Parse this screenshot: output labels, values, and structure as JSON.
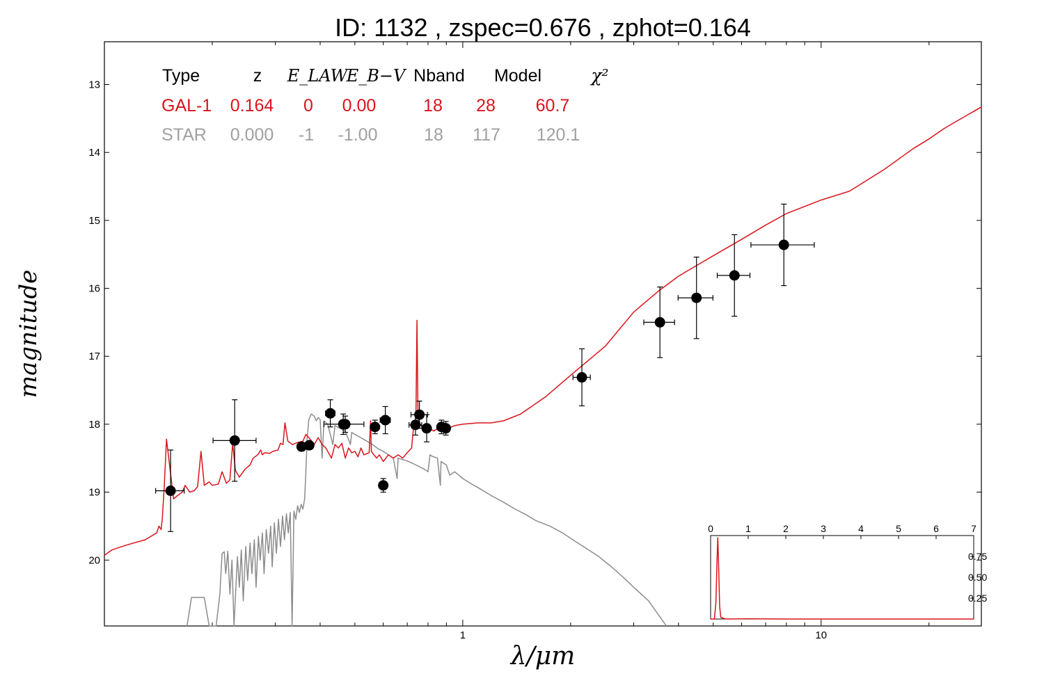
{
  "chart_data": {
    "type": "scatter",
    "title": "ID:  1132  , zspec=0.676 , zphot=0.164",
    "xlabel": "λ/μm",
    "ylabel": "magnitude",
    "xscale": "log",
    "xlim": [
      0.1,
      28
    ],
    "ylim": [
      20.97,
      12.37
    ],
    "x_ticks": [
      {
        "value": 1,
        "label": "1"
      },
      {
        "value": 10,
        "label": "10"
      }
    ],
    "y_ticks": [
      {
        "value": 13,
        "label": "13"
      },
      {
        "value": 14,
        "label": "14"
      },
      {
        "value": 15,
        "label": "15"
      },
      {
        "value": 16,
        "label": "16"
      },
      {
        "value": 17,
        "label": "17"
      },
      {
        "value": 18,
        "label": "18"
      },
      {
        "value": 19,
        "label": "19"
      },
      {
        "value": 20,
        "label": "20"
      }
    ],
    "colors": {
      "galaxy": "#d9141c",
      "star": "#8c8c8c",
      "points": "#000000",
      "axes": "#000000"
    },
    "fit_table": {
      "headers": [
        "Type",
        "z",
        "E_LAW",
        "E_B−V",
        "Nband",
        "Model",
        "χ²"
      ],
      "rows": [
        {
          "name": "gal",
          "values": [
            "GAL-1",
            "0.164",
            "0",
            "0.00",
            "18",
            "28",
            "60.7"
          ]
        },
        {
          "name": "star",
          "values": [
            "STAR",
            "0.000",
            "-1",
            "-1.00",
            "18",
            "117",
            "120.1"
          ]
        }
      ]
    },
    "photometry": [
      {
        "x": 0.153,
        "y": 18.98,
        "xerr": [
          0.014,
          0.014
        ],
        "yerr": 0.6
      },
      {
        "x": 0.231,
        "y": 18.24,
        "xerr": [
          0.03,
          0.034
        ],
        "yerr": 0.6
      },
      {
        "x": 0.355,
        "y": 18.33,
        "xerr": [
          0.007,
          0.007
        ],
        "yerr": 0.06
      },
      {
        "x": 0.373,
        "y": 18.31,
        "xerr": [
          0.01,
          0.01
        ],
        "yerr": 0.06
      },
      {
        "x": 0.427,
        "y": 17.84,
        "xerr": [
          0.013,
          0.013
        ],
        "yerr": 0.2
      },
      {
        "x": 0.464,
        "y": 18.0,
        "xerr": [
          0.012,
          0.012
        ],
        "yerr": 0.15
      },
      {
        "x": 0.47,
        "y": 18.0,
        "xerr": [
          0.06,
          0.06
        ],
        "yerr": 0.12
      },
      {
        "x": 0.569,
        "y": 18.04,
        "xerr": [
          0.013,
          0.013
        ],
        "yerr": 0.1
      },
      {
        "x": 0.6,
        "y": 18.9,
        "xerr": [
          0.015,
          0.015
        ],
        "yerr": 0.1
      },
      {
        "x": 0.608,
        "y": 17.94,
        "xerr": [
          0.02,
          0.02
        ],
        "yerr": 0.2
      },
      {
        "x": 0.738,
        "y": 18.01,
        "xerr": [
          0.03,
          0.03
        ],
        "yerr": 0.15
      },
      {
        "x": 0.757,
        "y": 17.86,
        "xerr": [
          0.04,
          0.04
        ],
        "yerr": 0.2
      },
      {
        "x": 0.793,
        "y": 18.06,
        "xerr": [
          0.015,
          0.015
        ],
        "yerr": 0.2
      },
      {
        "x": 0.872,
        "y": 18.04,
        "xerr": [
          0.02,
          0.02
        ],
        "yerr": 0.1
      },
      {
        "x": 0.897,
        "y": 18.06,
        "xerr": [
          0.02,
          0.02
        ],
        "yerr": 0.1
      },
      {
        "x": 2.15,
        "y": 17.31,
        "xerr": [
          0.12,
          0.12
        ],
        "yerr": 0.42
      },
      {
        "x": 3.55,
        "y": 16.5,
        "xerr": [
          0.35,
          0.35
        ],
        "yerr": 0.52
      },
      {
        "x": 4.49,
        "y": 16.14,
        "xerr": [
          0.5,
          0.5
        ],
        "yerr": 0.6
      },
      {
        "x": 5.73,
        "y": 15.81,
        "xerr": [
          0.6,
          0.6
        ],
        "yerr": 0.6
      },
      {
        "x": 7.87,
        "y": 15.36,
        "xerr": [
          1.5,
          1.7
        ],
        "yerr": 0.6
      }
    ],
    "galaxy_model": [
      [
        0.1,
        19.93
      ],
      [
        0.105,
        19.85
      ],
      [
        0.115,
        19.78
      ],
      [
        0.13,
        19.7
      ],
      [
        0.14,
        19.6
      ],
      [
        0.142,
        19.5
      ],
      [
        0.144,
        19.55
      ],
      [
        0.145,
        19.4
      ],
      [
        0.147,
        18.9
      ],
      [
        0.149,
        18.22
      ],
      [
        0.152,
        18.6
      ],
      [
        0.156,
        19.1
      ],
      [
        0.16,
        19.05
      ],
      [
        0.165,
        19.0
      ],
      [
        0.168,
        18.9
      ],
      [
        0.173,
        19.0
      ],
      [
        0.178,
        18.98
      ],
      [
        0.182,
        18.92
      ],
      [
        0.186,
        18.4
      ],
      [
        0.19,
        18.9
      ],
      [
        0.196,
        18.85
      ],
      [
        0.2,
        18.9
      ],
      [
        0.208,
        18.88
      ],
      [
        0.213,
        18.7
      ],
      [
        0.219,
        18.87
      ],
      [
        0.224,
        18.82
      ],
      [
        0.228,
        18.28
      ],
      [
        0.232,
        18.68
      ],
      [
        0.238,
        18.78
      ],
      [
        0.247,
        18.66
      ],
      [
        0.255,
        18.6
      ],
      [
        0.26,
        18.5
      ],
      [
        0.268,
        18.45
      ],
      [
        0.273,
        18.38
      ],
      [
        0.276,
        18.45
      ],
      [
        0.28,
        18.42
      ],
      [
        0.289,
        18.43
      ],
      [
        0.295,
        18.4
      ],
      [
        0.305,
        18.38
      ],
      [
        0.31,
        18.28
      ],
      [
        0.315,
        18.3
      ],
      [
        0.319,
        17.98
      ],
      [
        0.325,
        18.25
      ],
      [
        0.335,
        18.3
      ],
      [
        0.345,
        18.27
      ],
      [
        0.358,
        18.25
      ],
      [
        0.365,
        18.15
      ],
      [
        0.375,
        18.22
      ],
      [
        0.385,
        18.3
      ],
      [
        0.395,
        18.2
      ],
      [
        0.405,
        18.3
      ],
      [
        0.415,
        18.35
      ],
      [
        0.43,
        18.5
      ],
      [
        0.44,
        18.3
      ],
      [
        0.45,
        18.35
      ],
      [
        0.46,
        18.28
      ],
      [
        0.47,
        18.5
      ],
      [
        0.48,
        18.35
      ],
      [
        0.49,
        18.42
      ],
      [
        0.5,
        18.4
      ],
      [
        0.51,
        18.48
      ],
      [
        0.52,
        18.35
      ],
      [
        0.53,
        18.45
      ],
      [
        0.548,
        18.42
      ],
      [
        0.553,
        17.95
      ],
      [
        0.556,
        18.4
      ],
      [
        0.565,
        18.45
      ],
      [
        0.575,
        18.5
      ],
      [
        0.585,
        18.45
      ],
      [
        0.6,
        18.55
      ],
      [
        0.62,
        18.45
      ],
      [
        0.64,
        18.5
      ],
      [
        0.66,
        18.45
      ],
      [
        0.68,
        18.5
      ],
      [
        0.7,
        18.42
      ],
      [
        0.72,
        18.35
      ],
      [
        0.73,
        18.0
      ],
      [
        0.74,
        17.9
      ],
      [
        0.745,
        16.47
      ],
      [
        0.75,
        17.9
      ],
      [
        0.76,
        18.0
      ],
      [
        0.78,
        18.05
      ],
      [
        0.8,
        18.05
      ],
      [
        0.83,
        18.1
      ],
      [
        0.86,
        18.05
      ],
      [
        0.9,
        18.07
      ],
      [
        0.95,
        18.02
      ],
      [
        1.0,
        18.0
      ],
      [
        1.1,
        17.98
      ],
      [
        1.2,
        17.98
      ],
      [
        1.3,
        17.95
      ],
      [
        1.45,
        17.85
      ],
      [
        1.7,
        17.6
      ],
      [
        2.0,
        17.28
      ],
      [
        2.5,
        16.85
      ],
      [
        3.0,
        16.35
      ],
      [
        3.5,
        16.05
      ],
      [
        4.0,
        15.82
      ],
      [
        5.0,
        15.52
      ],
      [
        6.0,
        15.28
      ],
      [
        7.0,
        15.07
      ],
      [
        8.0,
        14.9
      ],
      [
        10.0,
        14.7
      ],
      [
        12.0,
        14.57
      ],
      [
        15.0,
        14.25
      ],
      [
        18.0,
        13.95
      ],
      [
        20.0,
        13.8
      ],
      [
        22.0,
        13.65
      ],
      [
        25.0,
        13.48
      ],
      [
        28.0,
        13.33
      ],
      [
        26.6,
        13.4
      ]
    ],
    "star_model": [
      [
        0.17,
        20.97
      ],
      [
        0.175,
        20.55
      ],
      [
        0.19,
        20.55
      ],
      [
        0.196,
        20.97
      ],
      [
        0.205,
        20.97
      ],
      [
        0.21,
        20.5
      ],
      [
        0.213,
        19.9
      ],
      [
        0.216,
        19.88
      ],
      [
        0.218,
        20.2
      ],
      [
        0.221,
        19.87
      ],
      [
        0.224,
        20.5
      ],
      [
        0.227,
        20.0
      ],
      [
        0.23,
        20.97
      ],
      [
        0.235,
        19.95
      ],
      [
        0.238,
        20.4
      ],
      [
        0.241,
        19.85
      ],
      [
        0.244,
        20.6
      ],
      [
        0.248,
        19.8
      ],
      [
        0.251,
        20.3
      ],
      [
        0.255,
        19.75
      ],
      [
        0.258,
        20.2
      ],
      [
        0.262,
        19.7
      ],
      [
        0.265,
        20.4
      ],
      [
        0.269,
        19.65
      ],
      [
        0.272,
        20.0
      ],
      [
        0.276,
        19.6
      ],
      [
        0.279,
        20.2
      ],
      [
        0.283,
        19.55
      ],
      [
        0.287,
        19.9
      ],
      [
        0.291,
        19.5
      ],
      [
        0.294,
        20.1
      ],
      [
        0.298,
        19.45
      ],
      [
        0.302,
        19.9
      ],
      [
        0.306,
        19.4
      ],
      [
        0.31,
        19.8
      ],
      [
        0.314,
        19.35
      ],
      [
        0.318,
        19.7
      ],
      [
        0.322,
        19.32
      ],
      [
        0.326,
        19.6
      ],
      [
        0.33,
        19.3
      ],
      [
        0.334,
        20.97
      ],
      [
        0.338,
        19.28
      ],
      [
        0.342,
        19.4
      ],
      [
        0.346,
        19.2
      ],
      [
        0.35,
        19.3
      ],
      [
        0.354,
        19.18
      ],
      [
        0.358,
        19.25
      ],
      [
        0.362,
        19.1
      ],
      [
        0.365,
        18.7
      ],
      [
        0.368,
        18.2
      ],
      [
        0.372,
        17.93
      ],
      [
        0.378,
        17.85
      ],
      [
        0.385,
        17.88
      ],
      [
        0.39,
        17.95
      ],
      [
        0.395,
        17.9
      ],
      [
        0.4,
        17.93
      ],
      [
        0.405,
        18.5
      ],
      [
        0.41,
        17.95
      ],
      [
        0.42,
        18.0
      ],
      [
        0.434,
        18.3
      ],
      [
        0.44,
        18.02
      ],
      [
        0.45,
        18.05
      ],
      [
        0.47,
        18.1
      ],
      [
        0.486,
        18.3
      ],
      [
        0.49,
        18.12
      ],
      [
        0.5,
        18.15
      ],
      [
        0.52,
        18.2
      ],
      [
        0.54,
        18.25
      ],
      [
        0.56,
        18.3
      ],
      [
        0.58,
        18.36
      ],
      [
        0.6,
        18.4
      ],
      [
        0.62,
        18.45
      ],
      [
        0.64,
        18.5
      ],
      [
        0.656,
        18.8
      ],
      [
        0.66,
        18.5
      ],
      [
        0.68,
        18.52
      ],
      [
        0.7,
        18.54
      ],
      [
        0.72,
        18.57
      ],
      [
        0.74,
        18.6
      ],
      [
        0.76,
        18.63
      ],
      [
        0.78,
        18.66
      ],
      [
        0.8,
        18.7
      ],
      [
        0.81,
        18.45
      ],
      [
        0.82,
        18.47
      ],
      [
        0.85,
        18.5
      ],
      [
        0.866,
        18.9
      ],
      [
        0.87,
        18.55
      ],
      [
        0.9,
        18.6
      ],
      [
        0.92,
        18.75
      ],
      [
        0.95,
        18.7
      ],
      [
        1.0,
        18.8
      ],
      [
        1.05,
        18.87
      ],
      [
        1.1,
        18.93
      ],
      [
        1.2,
        19.05
      ],
      [
        1.3,
        19.15
      ],
      [
        1.4,
        19.25
      ],
      [
        1.5,
        19.33
      ],
      [
        1.6,
        19.42
      ],
      [
        1.75,
        19.5
      ],
      [
        1.9,
        19.6
      ],
      [
        2.0,
        19.68
      ],
      [
        2.2,
        19.82
      ],
      [
        2.4,
        19.95
      ],
      [
        2.6,
        20.1
      ],
      [
        2.8,
        20.25
      ],
      [
        3.0,
        20.4
      ],
      [
        3.3,
        20.6
      ],
      [
        3.7,
        20.97
      ]
    ],
    "inset": {
      "xlim": [
        0,
        7
      ],
      "ylim": [
        0,
        1
      ],
      "x_ticks": [
        "0",
        "1",
        "2",
        "3",
        "4",
        "5",
        "6",
        "7"
      ],
      "y_ticks": [
        "0.25",
        "0.50",
        "0.75"
      ],
      "pdf": [
        [
          0,
          0.0
        ],
        [
          0.1,
          0.0
        ],
        [
          0.14,
          0.2
        ],
        [
          0.17,
          0.7
        ],
        [
          0.19,
          0.98
        ],
        [
          0.21,
          0.7
        ],
        [
          0.24,
          0.15
        ],
        [
          0.27,
          0.02
        ],
        [
          0.4,
          0.0
        ],
        [
          1.0,
          0.003
        ],
        [
          2.0,
          0.0
        ],
        [
          7.0,
          0.0
        ]
      ]
    }
  }
}
